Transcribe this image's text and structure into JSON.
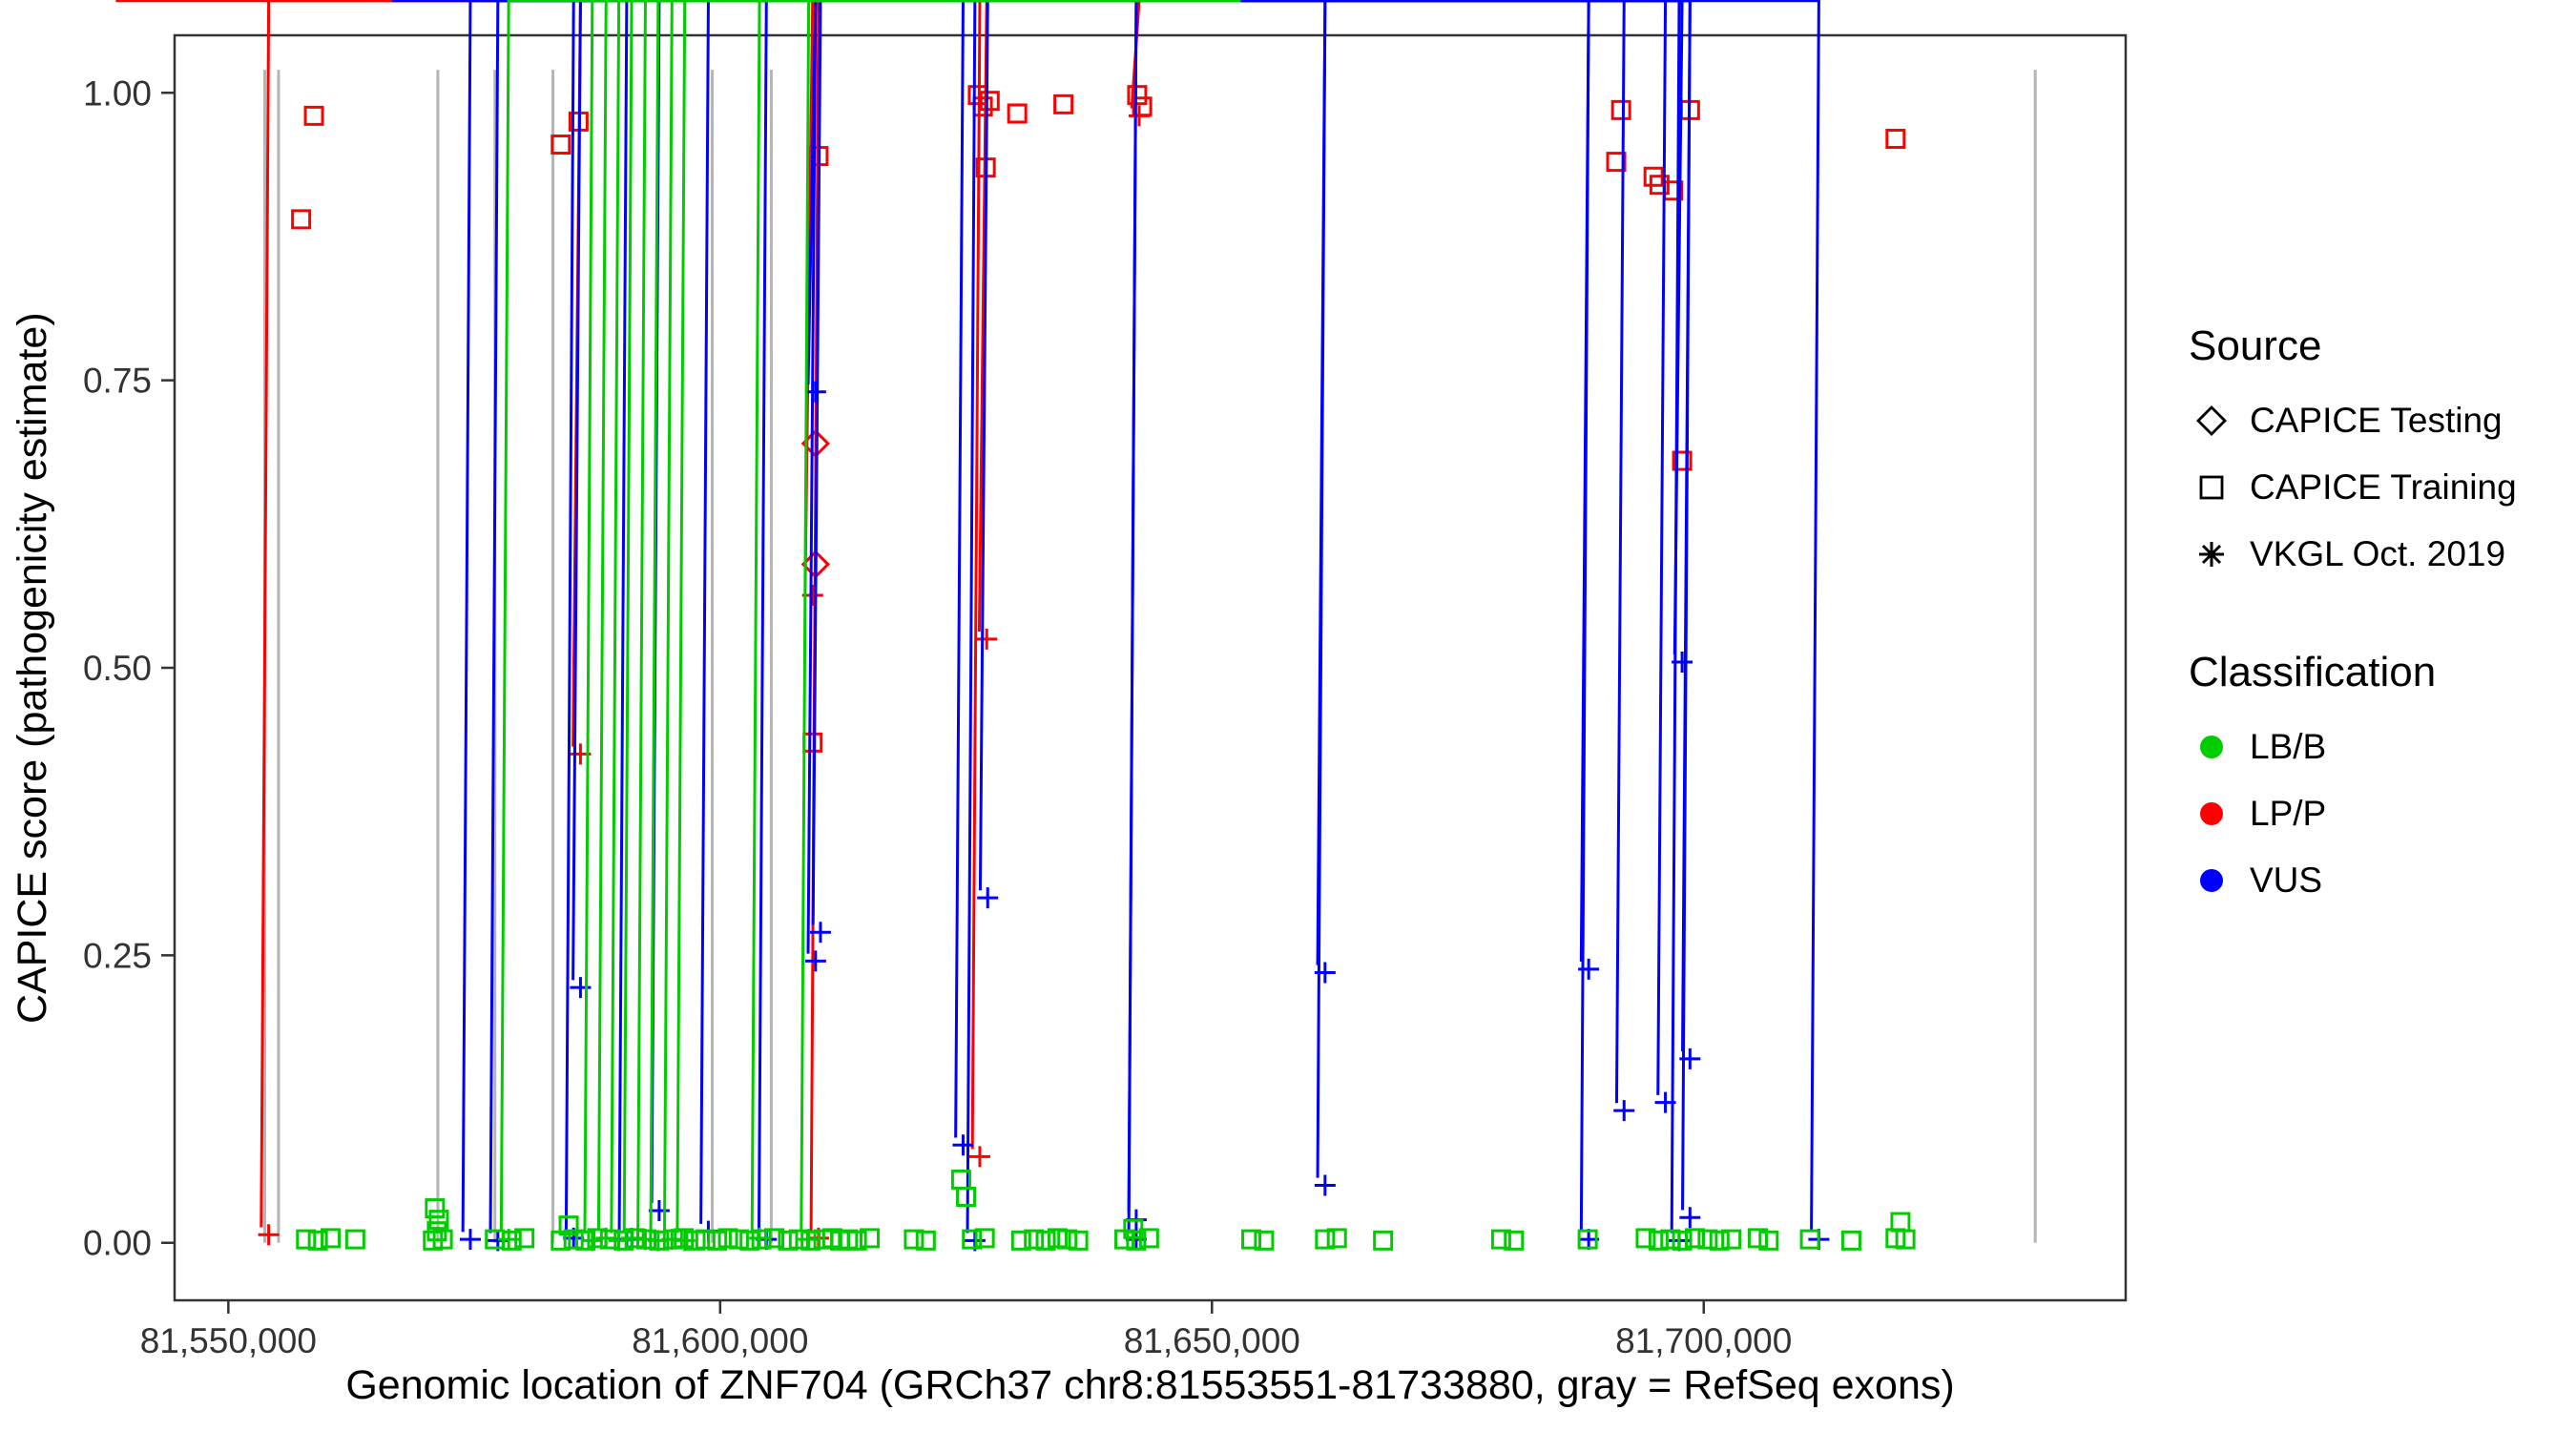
{
  "chart_data": {
    "type": "scatter",
    "title": "",
    "xlabel": "Genomic location of ZNF704 (GRCh37 chr8:81553551-81733880, gray = RefSeq exons)",
    "ylabel": "CAPICE score (pathogenicity estimate)",
    "x_range": [
      81544535,
      81742896
    ],
    "y_range": [
      -0.05,
      1.05
    ],
    "grid": false,
    "legend_position": "right",
    "x_ticks": [
      {
        "value": 81550000,
        "label": "81,550,000"
      },
      {
        "value": 81600000,
        "label": "81,600,000"
      },
      {
        "value": 81650000,
        "label": "81,650,000"
      },
      {
        "value": 81700000,
        "label": "81,700,000"
      }
    ],
    "y_ticks": [
      {
        "value": 0.0,
        "label": "0.00"
      },
      {
        "value": 0.25,
        "label": "0.25"
      },
      {
        "value": 0.5,
        "label": "0.50"
      },
      {
        "value": 0.75,
        "label": "0.75"
      },
      {
        "value": 1.0,
        "label": "1.00"
      }
    ],
    "exon_lines": [
      81553700,
      81555100,
      81571300,
      81577100,
      81583000,
      81599200,
      81605200,
      81733700
    ],
    "colors": {
      "LB/B": "#00CC00",
      "LP/P": "#FF0000",
      "VUS": "#0000FF",
      "exon": "#B5B5B5",
      "axis": "#333333"
    },
    "marker_shapes": {
      "CAPICE Testing": "open-diamond",
      "CAPICE Training": "open-square",
      "VKGL Oct. 2019": "asterisk"
    },
    "legend": {
      "source_title": "Source",
      "source_items": [
        {
          "label": "CAPICE Testing",
          "shape": "diamond"
        },
        {
          "label": "CAPICE Training",
          "shape": "square"
        },
        {
          "label": "VKGL Oct. 2019",
          "shape": "asterisk"
        }
      ],
      "classification_title": "Classification",
      "classification_items": [
        {
          "label": "LB/B",
          "color": "#00CC00"
        },
        {
          "label": "LP/P",
          "color": "#FF0000"
        },
        {
          "label": "VUS",
          "color": "#0000FF"
        }
      ]
    },
    "points_format": [
      "genomic_position",
      "capice_score",
      "classification",
      "source"
    ],
    "points": [
      [
        81557400,
        0.89,
        "LP/P",
        "Training"
      ],
      [
        81558700,
        0.98,
        "LP/P",
        "Training"
      ],
      [
        81583800,
        0.955,
        "LP/P",
        "Training"
      ],
      [
        81585600,
        0.975,
        "LP/P",
        "Training"
      ],
      [
        81610000,
        0.945,
        "LP/P",
        "Training"
      ],
      [
        81609400,
        0.435,
        "LP/P",
        "Training"
      ],
      [
        81626200,
        0.998,
        "LP/P",
        "Training"
      ],
      [
        81626700,
        0.988,
        "LP/P",
        "Training"
      ],
      [
        81627400,
        0.993,
        "LP/P",
        "Training"
      ],
      [
        81627000,
        0.935,
        "LP/P",
        "Training"
      ],
      [
        81630200,
        0.982,
        "LP/P",
        "Training"
      ],
      [
        81634900,
        0.99,
        "LP/P",
        "Training"
      ],
      [
        81642400,
        0.998,
        "LP/P",
        "Training"
      ],
      [
        81642900,
        0.988,
        "LP/P",
        "Training"
      ],
      [
        81691100,
        0.94,
        "LP/P",
        "Training"
      ],
      [
        81691600,
        0.985,
        "LP/P",
        "Training"
      ],
      [
        81694900,
        0.927,
        "LP/P",
        "Training"
      ],
      [
        81695500,
        0.92,
        "LP/P",
        "Training"
      ],
      [
        81696900,
        0.915,
        "LP/P",
        "Training"
      ],
      [
        81698600,
        0.985,
        "LP/P",
        "Training"
      ],
      [
        81697800,
        0.68,
        "LP/P",
        "Training"
      ],
      [
        81719500,
        0.96,
        "LP/P",
        "Training"
      ],
      [
        81609700,
        0.695,
        "LP/P",
        "Testing"
      ],
      [
        81609700,
        0.59,
        "LP/P",
        "Testing"
      ],
      [
        81554100,
        0.007,
        "LP/P",
        "VKGL"
      ],
      [
        81585800,
        0.425,
        "LP/P",
        "VKGL"
      ],
      [
        81609400,
        0.563,
        "LP/P",
        "VKGL"
      ],
      [
        81610000,
        0.004,
        "LP/P",
        "VKGL"
      ],
      [
        81627100,
        0.525,
        "LP/P",
        "VKGL"
      ],
      [
        81626400,
        0.075,
        "LP/P",
        "VKGL"
      ],
      [
        81642600,
        0.98,
        "LP/P",
        "VKGL"
      ],
      [
        81609700,
        0.74,
        "VUS",
        "VKGL"
      ],
      [
        81585800,
        0.222,
        "VUS",
        "VKGL"
      ],
      [
        81610200,
        0.27,
        "VUS",
        "VKGL"
      ],
      [
        81609700,
        0.245,
        "VUS",
        "VKGL"
      ],
      [
        81627200,
        0.3,
        "VUS",
        "VKGL"
      ],
      [
        81624700,
        0.085,
        "VUS",
        "VKGL"
      ],
      [
        81661500,
        0.235,
        "VUS",
        "VKGL"
      ],
      [
        81661500,
        0.05,
        "VUS",
        "VKGL"
      ],
      [
        81688300,
        0.238,
        "VUS",
        "VKGL"
      ],
      [
        81691900,
        0.115,
        "VUS",
        "VKGL"
      ],
      [
        81696100,
        0.122,
        "VUS",
        "VKGL"
      ],
      [
        81698600,
        0.16,
        "VUS",
        "VKGL"
      ],
      [
        81697800,
        0.505,
        "VUS",
        "VKGL"
      ],
      [
        81593800,
        0.028,
        "VUS",
        "VKGL"
      ],
      [
        81598800,
        0.01,
        "VUS",
        "VKGL"
      ],
      [
        81698600,
        0.022,
        "VUS",
        "VKGL"
      ],
      [
        81642300,
        0.02,
        "VUS",
        "VKGL"
      ],
      [
        81574600,
        0.003,
        "VUS",
        "VKGL"
      ],
      [
        81577400,
        0.002,
        "VUS",
        "VKGL"
      ],
      [
        81585100,
        0.004,
        "VUS",
        "VKGL"
      ],
      [
        81590500,
        0.003,
        "VUS",
        "VKGL"
      ],
      [
        81604700,
        0.003,
        "VUS",
        "VKGL"
      ],
      [
        81625900,
        0.002,
        "VUS",
        "VKGL"
      ],
      [
        81642300,
        0.003,
        "VUS",
        "VKGL"
      ],
      [
        81688300,
        0.003,
        "VUS",
        "VKGL"
      ],
      [
        81697500,
        0.002,
        "VUS",
        "VKGL"
      ],
      [
        81711700,
        0.003,
        "VUS",
        "VKGL"
      ],
      [
        81578500,
        0.003,
        "LB/B",
        "VKGL"
      ],
      [
        81587000,
        0.002,
        "LB/B",
        "VKGL"
      ],
      [
        81588400,
        0.004,
        "LB/B",
        "VKGL"
      ],
      [
        81589700,
        0.002,
        "LB/B",
        "VKGL"
      ],
      [
        81591000,
        0.004,
        "LB/B",
        "VKGL"
      ],
      [
        81592400,
        0.003,
        "LB/B",
        "VKGL"
      ],
      [
        81593700,
        0.002,
        "LB/B",
        "VKGL"
      ],
      [
        81595100,
        0.003,
        "LB/B",
        "VKGL"
      ],
      [
        81596400,
        0.002,
        "LB/B",
        "VKGL"
      ],
      [
        81604000,
        0.004,
        "LB/B",
        "VKGL"
      ],
      [
        81609000,
        0.003,
        "LB/B",
        "VKGL"
      ],
      [
        81571000,
        0.03,
        "LB/B",
        "Training"
      ],
      [
        81571400,
        0.02,
        "LB/B",
        "Training"
      ],
      [
        81571200,
        0.01,
        "LB/B",
        "Training"
      ],
      [
        81584600,
        0.015,
        "LB/B",
        "Training"
      ],
      [
        81624500,
        0.055,
        "LB/B",
        "Training"
      ],
      [
        81625000,
        0.04,
        "LB/B",
        "Training"
      ],
      [
        81642000,
        0.012,
        "LB/B",
        "Training"
      ],
      [
        81720000,
        0.018,
        "LB/B",
        "Training"
      ],
      [
        81557900,
        0.003,
        "LB/B",
        "Training"
      ],
      [
        81559100,
        0.002,
        "LB/B",
        "Training"
      ],
      [
        81560400,
        0.004,
        "LB/B",
        "Training"
      ],
      [
        81562900,
        0.003,
        "LB/B",
        "Training"
      ],
      [
        81570800,
        0.002,
        "LB/B",
        "Training"
      ],
      [
        81571800,
        0.003,
        "LB/B",
        "Training"
      ],
      [
        81577100,
        0.003,
        "LB/B",
        "Training"
      ],
      [
        81578800,
        0.002,
        "LB/B",
        "Training"
      ],
      [
        81580100,
        0.004,
        "LB/B",
        "Training"
      ],
      [
        81583800,
        0.002,
        "LB/B",
        "Training"
      ],
      [
        81585100,
        0.003,
        "LB/B",
        "Training"
      ],
      [
        81586300,
        0.002,
        "LB/B",
        "Training"
      ],
      [
        81587500,
        0.004,
        "LB/B",
        "Training"
      ],
      [
        81588800,
        0.003,
        "LB/B",
        "Training"
      ],
      [
        81590200,
        0.002,
        "LB/B",
        "Training"
      ],
      [
        81591300,
        0.004,
        "LB/B",
        "Training"
      ],
      [
        81592500,
        0.003,
        "LB/B",
        "Training"
      ],
      [
        81593800,
        0.002,
        "LB/B",
        "Training"
      ],
      [
        81595200,
        0.003,
        "LB/B",
        "Training"
      ],
      [
        81596300,
        0.004,
        "LB/B",
        "Training"
      ],
      [
        81597500,
        0.002,
        "LB/B",
        "Training"
      ],
      [
        81598500,
        0.003,
        "LB/B",
        "Training"
      ],
      [
        81599700,
        0.002,
        "LB/B",
        "Training"
      ],
      [
        81600800,
        0.004,
        "LB/B",
        "Training"
      ],
      [
        81601900,
        0.003,
        "LB/B",
        "Training"
      ],
      [
        81603000,
        0.002,
        "LB/B",
        "Training"
      ],
      [
        81604200,
        0.003,
        "LB/B",
        "Training"
      ],
      [
        81605500,
        0.004,
        "LB/B",
        "Training"
      ],
      [
        81606900,
        0.002,
        "LB/B",
        "Training"
      ],
      [
        81608000,
        0.003,
        "LB/B",
        "Training"
      ],
      [
        81609200,
        0.002,
        "LB/B",
        "Training"
      ],
      [
        81610500,
        0.003,
        "LB/B",
        "Training"
      ],
      [
        81611400,
        0.004,
        "LB/B",
        "Training"
      ],
      [
        81612200,
        0.002,
        "LB/B",
        "Training"
      ],
      [
        81613000,
        0.003,
        "LB/B",
        "Training"
      ],
      [
        81613900,
        0.002,
        "LB/B",
        "Training"
      ],
      [
        81615200,
        0.004,
        "LB/B",
        "Training"
      ],
      [
        81619700,
        0.003,
        "LB/B",
        "Training"
      ],
      [
        81620900,
        0.002,
        "LB/B",
        "Training"
      ],
      [
        81625600,
        0.003,
        "LB/B",
        "Training"
      ],
      [
        81626900,
        0.004,
        "LB/B",
        "Training"
      ],
      [
        81630600,
        0.002,
        "LB/B",
        "Training"
      ],
      [
        81631900,
        0.003,
        "LB/B",
        "Training"
      ],
      [
        81633100,
        0.002,
        "LB/B",
        "Training"
      ],
      [
        81634300,
        0.004,
        "LB/B",
        "Training"
      ],
      [
        81635300,
        0.003,
        "LB/B",
        "Training"
      ],
      [
        81636400,
        0.002,
        "LB/B",
        "Training"
      ],
      [
        81641100,
        0.003,
        "LB/B",
        "Training"
      ],
      [
        81642300,
        0.002,
        "LB/B",
        "Training"
      ],
      [
        81643600,
        0.004,
        "LB/B",
        "Training"
      ],
      [
        81654000,
        0.003,
        "LB/B",
        "Training"
      ],
      [
        81655300,
        0.002,
        "LB/B",
        "Training"
      ],
      [
        81661500,
        0.003,
        "LB/B",
        "Training"
      ],
      [
        81662700,
        0.004,
        "LB/B",
        "Training"
      ],
      [
        81667400,
        0.002,
        "LB/B",
        "Training"
      ],
      [
        81679400,
        0.003,
        "LB/B",
        "Training"
      ],
      [
        81680700,
        0.002,
        "LB/B",
        "Training"
      ],
      [
        81688200,
        0.003,
        "LB/B",
        "Training"
      ],
      [
        81694100,
        0.004,
        "LB/B",
        "Training"
      ],
      [
        81695400,
        0.002,
        "LB/B",
        "Training"
      ],
      [
        81696600,
        0.003,
        "LB/B",
        "Training"
      ],
      [
        81697800,
        0.002,
        "LB/B",
        "Training"
      ],
      [
        81699100,
        0.004,
        "LB/B",
        "Training"
      ],
      [
        81700400,
        0.003,
        "LB/B",
        "Training"
      ],
      [
        81701600,
        0.002,
        "LB/B",
        "Training"
      ],
      [
        81702800,
        0.003,
        "LB/B",
        "Training"
      ],
      [
        81705500,
        0.004,
        "LB/B",
        "Training"
      ],
      [
        81706600,
        0.002,
        "LB/B",
        "Training"
      ],
      [
        81710800,
        0.003,
        "LB/B",
        "Training"
      ],
      [
        81715000,
        0.002,
        "LB/B",
        "Training"
      ],
      [
        81719500,
        0.004,
        "LB/B",
        "Training"
      ],
      [
        81720500,
        0.003,
        "LB/B",
        "Training"
      ]
    ]
  }
}
